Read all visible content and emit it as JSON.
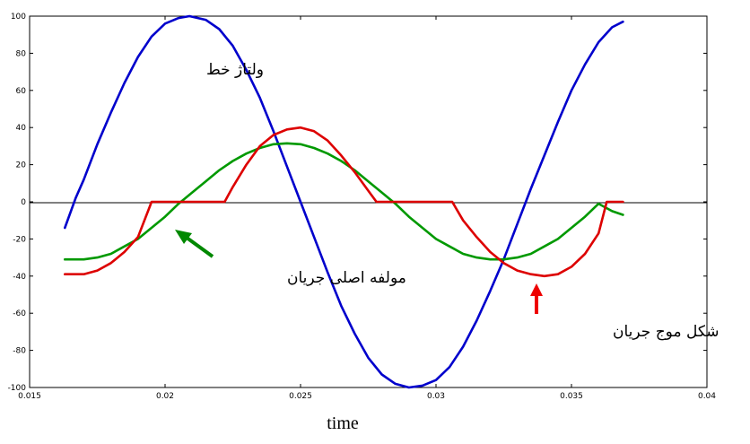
{
  "chart_data": {
    "type": "line",
    "title": "",
    "xlabel": "time",
    "ylabel": "",
    "xlim": [
      0.015,
      0.04
    ],
    "ylim": [
      -100,
      100
    ],
    "x_ticks": [
      "0.015",
      "0.02",
      "0.025",
      "0.03",
      "0.035",
      "0.04"
    ],
    "y_ticks": [
      "100",
      "80",
      "60",
      "40",
      "20",
      "0",
      "-20",
      "-40",
      "-60",
      "-80",
      "-100"
    ],
    "grid": false,
    "legend": "none",
    "series": [
      {
        "name": "",
        "color": "#0000cc",
        "x": [
          0.0163,
          0.0167,
          0.017,
          0.0175,
          0.018,
          0.0185,
          0.019,
          0.0195,
          0.02,
          0.0205,
          0.0209,
          0.0215,
          0.022,
          0.0225,
          0.023,
          0.0235,
          0.024,
          0.0245,
          0.025,
          0.0255,
          0.026,
          0.0265,
          0.027,
          0.0275,
          0.028,
          0.0285,
          0.029,
          0.0295,
          0.03,
          0.0305,
          0.031,
          0.0315,
          0.032,
          0.0325,
          0.033,
          0.0335,
          0.034,
          0.0345,
          0.035,
          0.0355,
          0.036,
          0.0365,
          0.0369
        ],
        "y": [
          -14,
          2,
          12,
          31,
          48,
          64,
          78,
          89,
          96,
          99,
          100,
          98,
          93,
          84,
          71,
          56,
          38,
          19,
          0,
          -19,
          -38,
          -56,
          -71,
          -84,
          -93,
          -98,
          -100,
          -99,
          -96,
          -89,
          -78,
          -64,
          -48,
          -31,
          -12,
          7,
          25,
          43,
          60,
          74,
          86,
          94,
          97
        ]
      },
      {
        "name": "",
        "color": "#009900",
        "x": [
          0.0163,
          0.017,
          0.0175,
          0.018,
          0.0185,
          0.019,
          0.0195,
          0.02,
          0.0205,
          0.021,
          0.0215,
          0.022,
          0.0225,
          0.023,
          0.0235,
          0.024,
          0.0245,
          0.025,
          0.0255,
          0.026,
          0.0265,
          0.027,
          0.0275,
          0.028,
          0.0285,
          0.029,
          0.0295,
          0.03,
          0.0305,
          0.031,
          0.0315,
          0.032,
          0.0325,
          0.033,
          0.0335,
          0.034,
          0.0345,
          0.035,
          0.0355,
          0.036,
          0.0365,
          0.0369
        ],
        "y": [
          -31,
          -31,
          -30,
          -28,
          -24,
          -20,
          -14,
          -8,
          -1,
          5,
          11,
          17,
          22,
          26,
          29,
          31,
          31.5,
          31,
          29,
          26,
          22,
          17,
          11,
          5,
          -1,
          -8,
          -14,
          -20,
          -24,
          -28,
          -30,
          -31,
          -31,
          -30,
          -28,
          -24,
          -20,
          -14,
          -8,
          -1,
          -5,
          -7
        ]
      },
      {
        "name": "",
        "color": "#dd0000",
        "x": [
          0.0163,
          0.017,
          0.0175,
          0.018,
          0.0185,
          0.019,
          0.01945,
          0.0195,
          0.0222,
          0.0225,
          0.023,
          0.0235,
          0.024,
          0.0245,
          0.025,
          0.0255,
          0.026,
          0.0265,
          0.027,
          0.0275,
          0.0278,
          0.0306,
          0.031,
          0.0315,
          0.032,
          0.0325,
          0.033,
          0.0335,
          0.034,
          0.0345,
          0.035,
          0.0355,
          0.036,
          0.0363,
          0.0369
        ],
        "y": [
          -39,
          -39,
          -37,
          -33,
          -27,
          -19,
          -2,
          0,
          0,
          8,
          20,
          30,
          36,
          39,
          40,
          38,
          33,
          25,
          16,
          6,
          0,
          0,
          -10,
          -19,
          -27,
          -33,
          -37,
          -39,
          -40,
          -39,
          -35,
          -28,
          -17,
          0,
          0
        ]
      }
    ],
    "annotations": [
      {
        "text": "ولتاژ خط",
        "color": "#000000"
      },
      {
        "text": "مولفه اصلی جریان",
        "arrow_color": "#008800"
      },
      {
        "text": "شکل موج جریان",
        "arrow_color": "#ee0000"
      }
    ]
  }
}
